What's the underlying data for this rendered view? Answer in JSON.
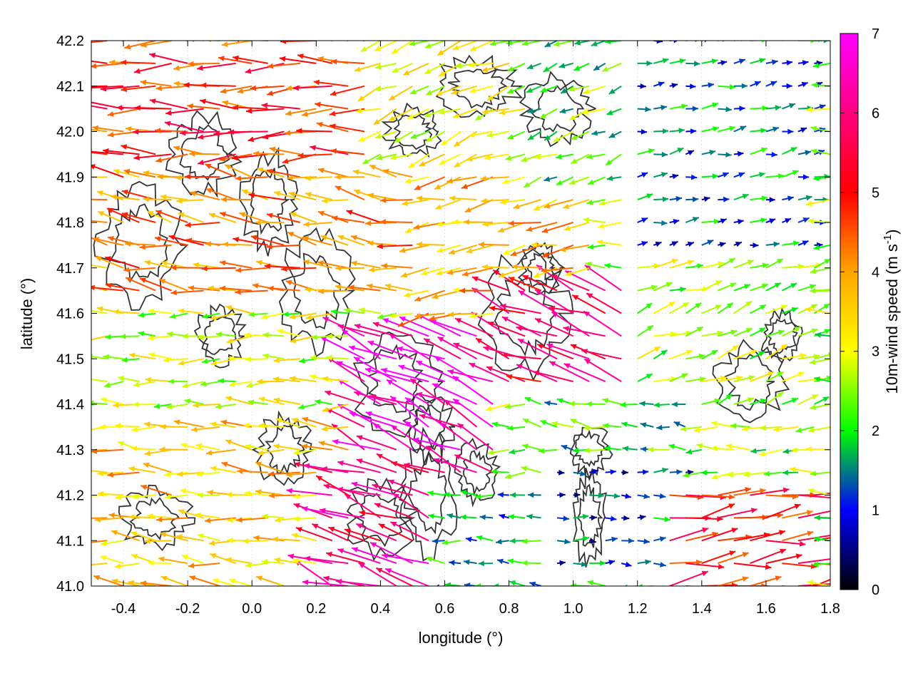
{
  "chart_data": {
    "type": "vector-field",
    "xlabel": "longitude (°)",
    "ylabel": "latitude (°)",
    "xlim": [
      -0.5,
      1.8
    ],
    "ylim": [
      41.0,
      42.2
    ],
    "x_ticks": [
      -0.4,
      -0.2,
      0.0,
      0.2,
      0.4,
      0.6,
      0.8,
      1.0,
      1.2,
      1.4,
      1.6,
      1.8
    ],
    "x_tick_labels": [
      "-0.4",
      "-0.2",
      "0.0",
      "0.2",
      "0.4",
      "0.6",
      "0.8",
      "1.0",
      "1.2",
      "1.4",
      "1.6",
      "1.8"
    ],
    "y_ticks": [
      41.0,
      41.1,
      41.2,
      41.3,
      41.4,
      41.5,
      41.6,
      41.7,
      41.8,
      41.9,
      42.0,
      42.1,
      42.2
    ],
    "y_tick_labels": [
      "41.0",
      "41.1",
      "41.2",
      "41.3",
      "41.4",
      "41.5",
      "41.6",
      "41.7",
      "41.8",
      "41.9",
      "42.0",
      "42.1",
      "42.2"
    ],
    "grid": true,
    "colorbar": {
      "label_main": "10m-wind speed (m s",
      "label_sup": "-1",
      "label_close": ")",
      "range": [
        0,
        7
      ],
      "ticks": [
        0,
        1,
        2,
        3,
        4,
        5,
        6,
        7
      ],
      "tick_labels": [
        "0",
        "1",
        "2",
        "3",
        "4",
        "5",
        "6",
        "7"
      ],
      "colors": [
        "#000000",
        "#0000ff",
        "#00ff00",
        "#ffff00",
        "#ffa500",
        "#ff0000",
        "#ff00ff"
      ],
      "color_stops": [
        0,
        1,
        2,
        3,
        4,
        5,
        7
      ]
    },
    "contour_color": "#333333",
    "wind_regions": [
      {
        "x0": -0.5,
        "x1": 0.35,
        "y0": 41.9,
        "y1": 42.2,
        "dir_deg": 180,
        "speed": 4.8
      },
      {
        "x0": -0.5,
        "x1": 0.5,
        "y0": 41.6,
        "y1": 41.9,
        "dir_deg": 170,
        "speed": 4.2
      },
      {
        "x0": -0.5,
        "x1": 0.3,
        "y0": 41.35,
        "y1": 41.6,
        "dir_deg": 180,
        "speed": 2.8
      },
      {
        "x0": -0.5,
        "x1": 0.3,
        "y0": 41.0,
        "y1": 41.35,
        "dir_deg": 175,
        "speed": 3.6
      },
      {
        "x0": 0.3,
        "x1": 0.8,
        "y0": 41.2,
        "y1": 41.55,
        "dir_deg": 155,
        "speed": 6.6
      },
      {
        "x0": 0.2,
        "x1": 0.6,
        "y0": 41.0,
        "y1": 41.25,
        "dir_deg": 160,
        "speed": 6.0
      },
      {
        "x0": 0.35,
        "x1": 0.9,
        "y0": 41.9,
        "y1": 42.2,
        "dir_deg": 200,
        "speed": 3.0
      },
      {
        "x0": 0.5,
        "x1": 1.1,
        "y0": 41.55,
        "y1": 41.9,
        "dir_deg": 190,
        "speed": 3.8
      },
      {
        "x0": 0.8,
        "x1": 1.2,
        "y0": 41.4,
        "y1": 41.65,
        "dir_deg": 160,
        "speed": 5.6
      },
      {
        "x0": 0.9,
        "x1": 1.3,
        "y0": 41.85,
        "y1": 42.2,
        "dir_deg": 200,
        "speed": 2.2
      },
      {
        "x0": 1.2,
        "x1": 1.8,
        "y0": 41.7,
        "y1": 42.2,
        "dir_deg": 10,
        "speed": 1.4
      },
      {
        "x0": 1.2,
        "x1": 1.8,
        "y0": 41.35,
        "y1": 41.7,
        "dir_deg": 20,
        "speed": 2.6
      },
      {
        "x0": 0.9,
        "x1": 1.4,
        "y0": 41.25,
        "y1": 41.4,
        "dir_deg": 170,
        "speed": 2.0
      },
      {
        "x0": 0.95,
        "x1": 1.4,
        "y0": 41.05,
        "y1": 41.25,
        "dir_deg": 0,
        "speed": 1.2
      },
      {
        "x0": 1.3,
        "x1": 1.8,
        "y0": 41.0,
        "y1": 41.2,
        "dir_deg": 8,
        "speed": 5.0
      },
      {
        "x0": 0.6,
        "x1": 0.95,
        "y0": 41.0,
        "y1": 41.2,
        "dir_deg": 175,
        "speed": 1.6
      }
    ]
  }
}
